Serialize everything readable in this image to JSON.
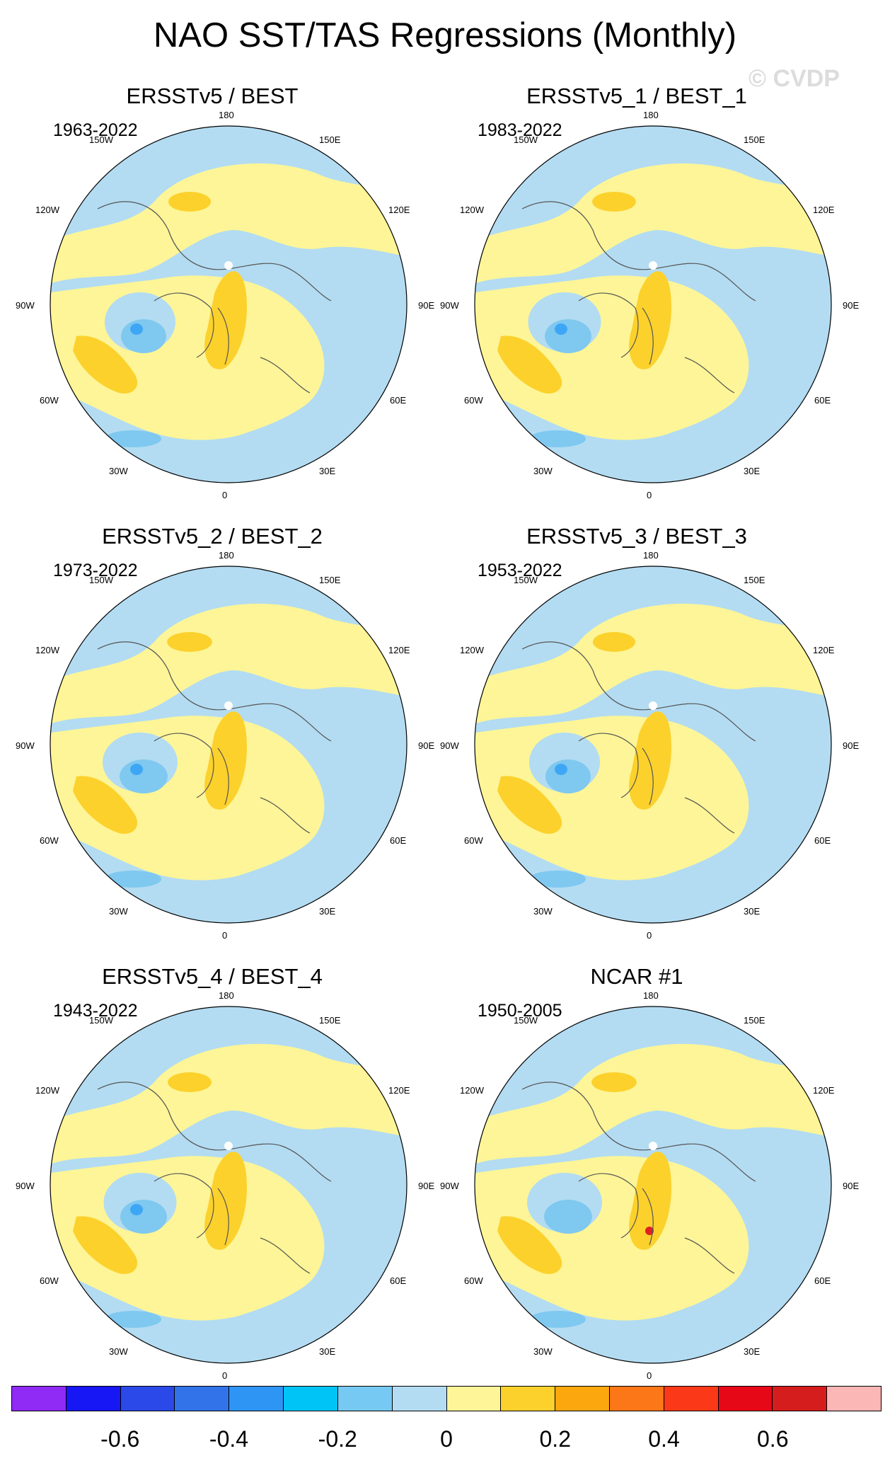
{
  "title": "NAO SST/TAS Regressions (Monthly)",
  "watermark": "© CVDP",
  "colors": {
    "land_neg": "#b3dcf2",
    "pos": "#fdf597",
    "pos2": "#fcd12c",
    "neg2": "#7fc8f0",
    "neg3": "#3ea7f5",
    "red": "#e02020",
    "coast": "#555555"
  },
  "lon_labels": {
    "top": "180",
    "bottom": "0",
    "upper_left": "150W",
    "upper_right": "150E",
    "left_upper": "120W",
    "right_upper": "120E",
    "left": "90W",
    "right": "90E",
    "left_lower": "60W",
    "right_lower": "60E",
    "lower_left": "30W",
    "lower_right": "30E"
  },
  "panels": [
    {
      "title": "ERSSTv5 / BEST",
      "period": "1963-2022"
    },
    {
      "title": "ERSSTv5_1 / BEST_1",
      "period": "1983-2022"
    },
    {
      "title": "ERSSTv5_2 / BEST_2",
      "period": "1973-2022"
    },
    {
      "title": "ERSSTv5_3 / BEST_3",
      "period": "1953-2022"
    },
    {
      "title": "ERSSTv5_4 / BEST_4",
      "period": "1943-2022"
    },
    {
      "title": "NCAR #1",
      "period": "1950-2005"
    }
  ],
  "colorbar": {
    "colors": [
      "#8f2bf5",
      "#1717f5",
      "#2a49e8",
      "#3273ea",
      "#2f95f5",
      "#00c4f5",
      "#76c9f2",
      "#b3dcf2",
      "#fdf597",
      "#fcd12c",
      "#fba70d",
      "#fb7717",
      "#fb3817",
      "#e70817",
      "#d51d1d",
      "#fbb6b6"
    ],
    "labels": [
      "-0.6",
      "-0.4",
      "-0.2",
      "0",
      "0.2",
      "0.4",
      "0.6"
    ]
  }
}
